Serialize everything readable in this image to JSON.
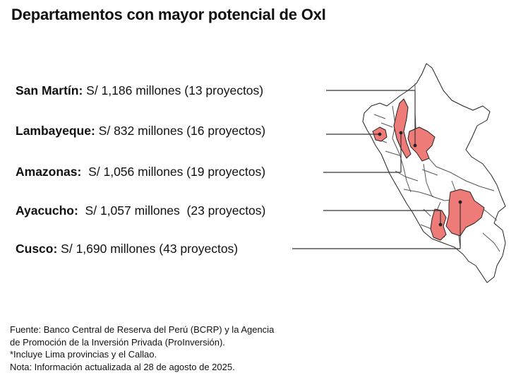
{
  "title": "Departamentos con mayor potencial de OxI",
  "departments": [
    {
      "name": "San Martín:",
      "value": " S/ 1,186 millones (13 proyectos)"
    },
    {
      "name": "Lambayeque:",
      "value": " S/ 832 millones (16 proyectos)"
    },
    {
      "name": "Amazonas:",
      "value": "  S/ 1,056 millones (19 proyectos)"
    },
    {
      "name": "Ayacucho:",
      "value": "  S/ 1,057 millones  (23 proyectos)"
    },
    {
      "name": "Cusco:",
      "value": " S/ 1,690 millones (43 proyectos)"
    }
  ],
  "footer": {
    "line1": "Fuente: Banco Central de Reserva del Perú (BCRP) y la Agencia",
    "line2": "de Promoción de la Inversión Privada (ProInversión).",
    "line3": "*Incluye Lima provincias y el Callao.",
    "line4": "Nota: Información actualizada al 28 de agosto de 2025."
  },
  "colors": {
    "highlight": "#ee7b77",
    "outline": "#222222",
    "leader": "#333333"
  }
}
